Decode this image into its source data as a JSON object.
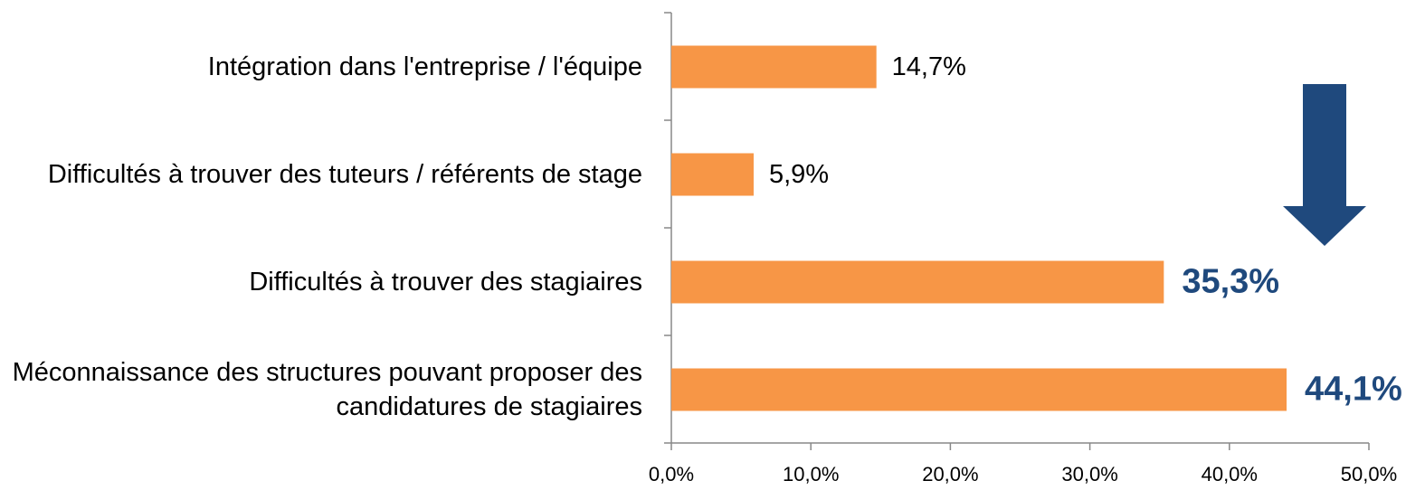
{
  "chart_data": {
    "type": "bar",
    "orientation": "horizontal",
    "categories": [
      "Intégration dans l'entreprise / l'équipe",
      "Difficultés à trouver des tuteurs / référents de stage",
      "Difficultés à trouver des stagiaires",
      "Méconnaissance des structures pouvant proposer des candidatures de stagiaires"
    ],
    "values": [
      14.7,
      5.9,
      35.3,
      44.1
    ],
    "value_labels": [
      "14,7%",
      "5,9%",
      "35,3%",
      "44,1%"
    ],
    "value_label_colors": [
      "#000000",
      "#000000",
      "#1f497d",
      "#1f497d"
    ],
    "color": "#f79646",
    "xlim": [
      0,
      50
    ],
    "xticks": [
      {
        "value": 0,
        "label": "0,0%"
      },
      {
        "value": 10,
        "label": "10,0%"
      },
      {
        "value": 20,
        "label": "20,0%"
      },
      {
        "value": 30,
        "label": "30,0%"
      },
      {
        "value": 40,
        "label": "40,0%"
      },
      {
        "value": 50,
        "label": "50,0%"
      }
    ],
    "grid": false
  }
}
